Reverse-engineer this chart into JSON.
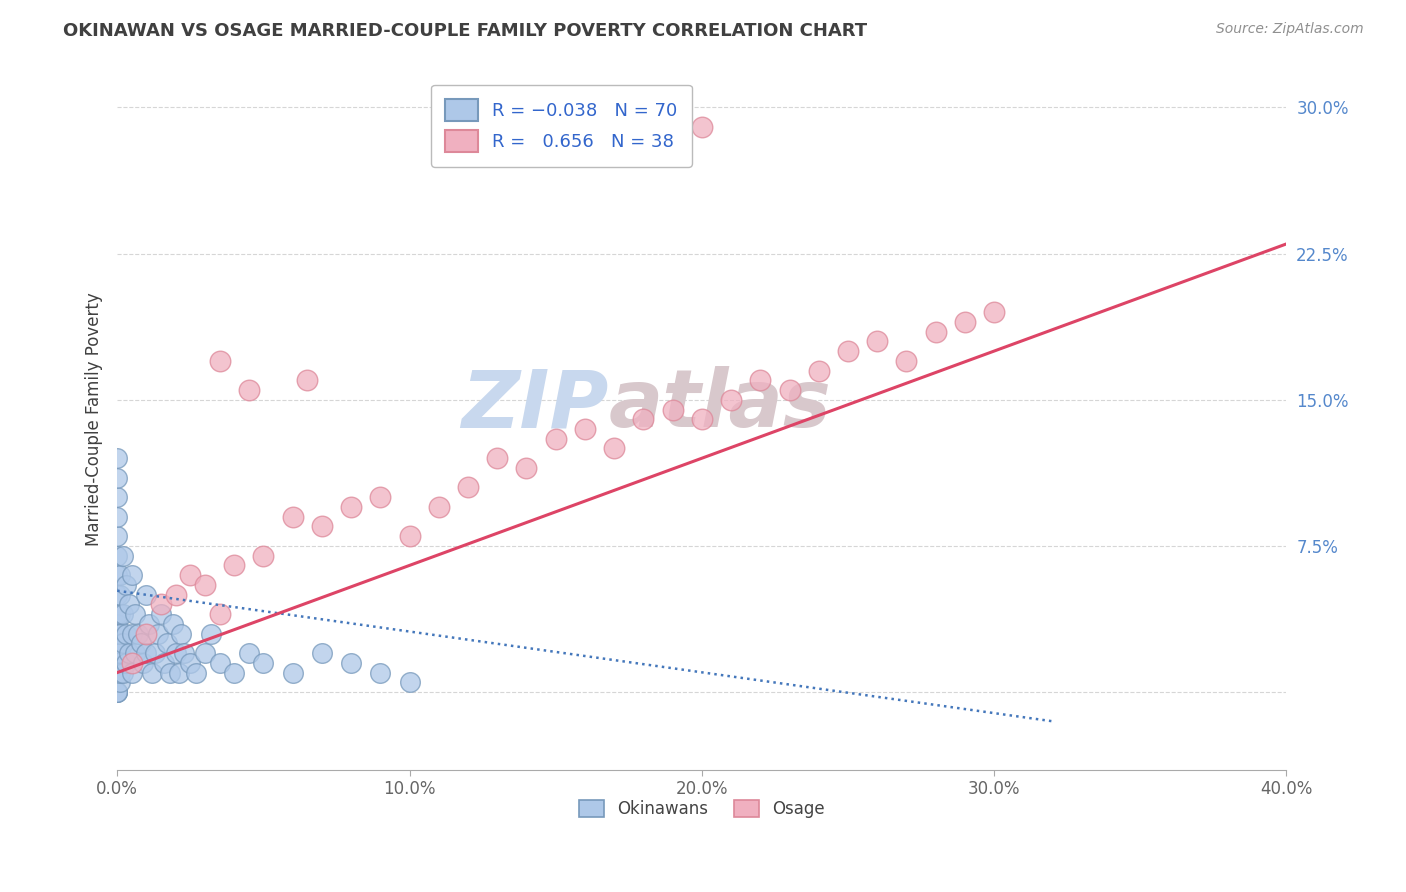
{
  "title": "OKINAWAN VS OSAGE MARRIED-COUPLE FAMILY POVERTY CORRELATION CHART",
  "source": "Source: ZipAtlas.com",
  "ylabel": "Married-Couple Family Poverty",
  "watermark": "ZIPatlas",
  "xlim": [
    0.0,
    40.0
  ],
  "ylim": [
    -4.0,
    32.0
  ],
  "xticks": [
    0.0,
    10.0,
    20.0,
    30.0,
    40.0
  ],
  "xtick_labels": [
    "0.0%",
    "10.0%",
    "20.0%",
    "30.0%",
    "40.0%"
  ],
  "ytick_positions": [
    0.0,
    7.5,
    15.0,
    22.5,
    30.0
  ],
  "ytick_labels": [
    "",
    "7.5%",
    "15.0%",
    "22.5%",
    "30.0%"
  ],
  "okinawan_color": "#aec8e8",
  "osage_color": "#f0b0c0",
  "okinawan_edge": "#7799bb",
  "osage_edge": "#dd8899",
  "trend_okinawan_color": "#4477bb",
  "trend_osage_color": "#dd4466",
  "grid_color": "#cccccc",
  "background_color": "#ffffff",
  "title_color": "#404040",
  "source_color": "#909090",
  "watermark_color_zip": "#c8d8ee",
  "watermark_color_atlas": "#d8c8cc",
  "okinawan_scatter_x": [
    0.0,
    0.0,
    0.0,
    0.0,
    0.0,
    0.0,
    0.0,
    0.0,
    0.0,
    0.0,
    0.0,
    0.0,
    0.0,
    0.0,
    0.0,
    0.0,
    0.0,
    0.0,
    0.1,
    0.1,
    0.1,
    0.1,
    0.1,
    0.1,
    0.1,
    0.2,
    0.2,
    0.2,
    0.2,
    0.3,
    0.3,
    0.3,
    0.4,
    0.4,
    0.5,
    0.5,
    0.5,
    0.6,
    0.6,
    0.7,
    0.8,
    0.9,
    1.0,
    1.0,
    1.1,
    1.2,
    1.3,
    1.4,
    1.5,
    1.6,
    1.7,
    1.8,
    1.9,
    2.0,
    2.1,
    2.2,
    2.3,
    2.5,
    2.7,
    3.0,
    3.2,
    3.5,
    4.0,
    4.5,
    5.0,
    6.0,
    7.0,
    8.0,
    9.0,
    10.0
  ],
  "okinawan_scatter_y": [
    0.0,
    0.0,
    0.0,
    1.0,
    1.5,
    2.0,
    2.5,
    3.0,
    3.5,
    4.0,
    5.0,
    6.0,
    7.0,
    8.0,
    9.0,
    10.0,
    11.0,
    12.0,
    0.5,
    1.0,
    2.0,
    3.0,
    4.0,
    5.0,
    6.0,
    1.0,
    2.5,
    4.0,
    7.0,
    1.5,
    3.0,
    5.5,
    2.0,
    4.5,
    1.0,
    3.0,
    6.0,
    2.0,
    4.0,
    3.0,
    2.5,
    1.5,
    2.0,
    5.0,
    3.5,
    1.0,
    2.0,
    3.0,
    4.0,
    1.5,
    2.5,
    1.0,
    3.5,
    2.0,
    1.0,
    3.0,
    2.0,
    1.5,
    1.0,
    2.0,
    3.0,
    1.5,
    1.0,
    2.0,
    1.5,
    1.0,
    2.0,
    1.5,
    1.0,
    0.5
  ],
  "osage_scatter_x": [
    0.5,
    1.0,
    1.5,
    2.0,
    2.5,
    3.0,
    3.5,
    4.0,
    5.0,
    6.0,
    7.0,
    8.0,
    9.0,
    10.0,
    11.0,
    12.0,
    13.0,
    14.0,
    15.0,
    16.0,
    17.0,
    18.0,
    19.0,
    20.0,
    21.0,
    22.0,
    23.0,
    24.0,
    25.0,
    26.0,
    27.0,
    28.0,
    29.0,
    30.0,
    20.0,
    3.5,
    4.5,
    6.5
  ],
  "osage_scatter_y": [
    1.5,
    3.0,
    4.5,
    5.0,
    6.0,
    5.5,
    4.0,
    6.5,
    7.0,
    9.0,
    8.5,
    9.5,
    10.0,
    8.0,
    9.5,
    10.5,
    12.0,
    11.5,
    13.0,
    13.5,
    12.5,
    14.0,
    14.5,
    14.0,
    15.0,
    16.0,
    15.5,
    16.5,
    17.5,
    18.0,
    17.0,
    18.5,
    19.0,
    19.5,
    29.0,
    17.0,
    15.5,
    16.0
  ],
  "okinawan_trend_x": [
    0.0,
    32.0
  ],
  "okinawan_trend_y": [
    5.2,
    -1.5
  ],
  "osage_trend_x": [
    0.0,
    40.0
  ],
  "osage_trend_y": [
    1.0,
    23.0
  ]
}
